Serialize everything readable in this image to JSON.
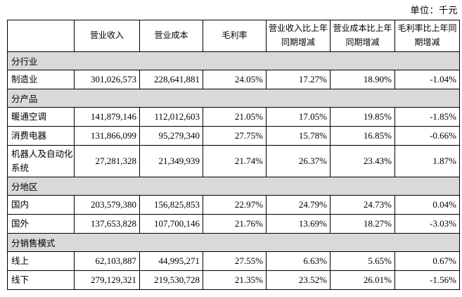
{
  "unit_label": "单位：千元",
  "colors": {
    "section_bg": "#d9d9d9",
    "border": "#000000",
    "text": "#000000"
  },
  "table": {
    "columns": [
      "",
      "营业收入",
      "营业成本",
      "毛利率",
      "营业收入比上年同期增减",
      "营业成本比上年同期增减",
      "毛利率比上年同期增减"
    ],
    "sections": [
      {
        "title": "分行业",
        "rows": [
          {
            "label": "制造业",
            "values": [
              "301,026,573",
              "228,641,881",
              "24.05%",
              "17.27%",
              "18.90%",
              "-1.04%"
            ]
          }
        ]
      },
      {
        "title": "分产品",
        "rows": [
          {
            "label": "暖通空调",
            "values": [
              "141,879,146",
              "112,012,603",
              "21.05%",
              "17.05%",
              "19.85%",
              "-1.85%"
            ]
          },
          {
            "label": "消费电器",
            "values": [
              "131,866,099",
              "95,279,340",
              "27.75%",
              "15.78%",
              "16.85%",
              "-0.66%"
            ]
          },
          {
            "label": "机器人及自动化系统",
            "values": [
              "27,281,328",
              "21,349,939",
              "21.74%",
              "26.37%",
              "23.43%",
              "1.87%"
            ]
          }
        ]
      },
      {
        "title": "分地区",
        "rows": [
          {
            "label": "国内",
            "values": [
              "203,579,380",
              "156,825,853",
              "22.97%",
              "24.79%",
              "24.73%",
              "0.04%"
            ]
          },
          {
            "label": "国外",
            "values": [
              "137,653,828",
              "107,700,146",
              "21.76%",
              "13.69%",
              "18.27%",
              "-3.03%"
            ]
          }
        ]
      },
      {
        "title": "分销售模式",
        "rows": [
          {
            "label": "线上",
            "values": [
              "62,103,887",
              "44,995,271",
              "27.55%",
              "6.63%",
              "5.65%",
              "0.67%"
            ]
          },
          {
            "label": "线下",
            "values": [
              "279,129,321",
              "219,530,728",
              "21.35%",
              "23.52%",
              "26.01%",
              "-1.56%"
            ]
          }
        ]
      }
    ]
  }
}
